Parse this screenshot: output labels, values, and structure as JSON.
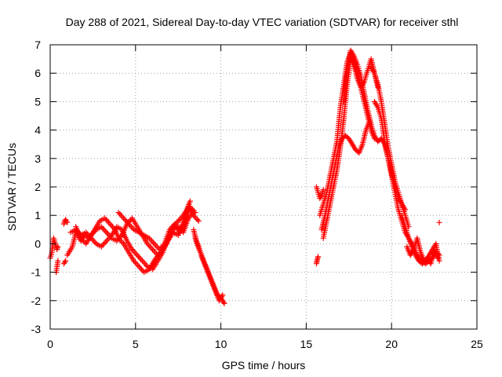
{
  "chart_data": {
    "type": "scatter",
    "title": "Day 288 of 2021, Sidereal Day-to-day VTEC variation (SDTVAR) for receiver sthl",
    "xlabel": "GPS time / hours",
    "ylabel": "SDTVAR / TECUs",
    "xlim": [
      0,
      25
    ],
    "ylim": [
      -3,
      7
    ],
    "xticks": [
      "0",
      "5",
      "10",
      "15",
      "20",
      "25"
    ],
    "yticks": [
      "-3",
      "-2",
      "-1",
      "0",
      "1",
      "2",
      "3",
      "4",
      "5",
      "6",
      "7"
    ],
    "grid": true,
    "marker": "+",
    "series": [
      {
        "name": "SDTVAR",
        "color": "#ff0000",
        "tracks": [
          {
            "x": [
              0.0,
              0.1,
              0.2,
              0.3,
              0.4,
              0.45
            ],
            "y": [
              -0.5,
              -0.3,
              0.2,
              0.0,
              -0.2,
              -0.1
            ]
          },
          {
            "x": [
              0.35,
              0.4,
              0.45
            ],
            "y": [
              -1.0,
              -0.8,
              -0.6
            ]
          },
          {
            "x": [
              0.8,
              0.85,
              0.9,
              0.95,
              1.0
            ],
            "y": [
              0.7,
              0.8,
              0.85,
              0.8,
              0.75
            ]
          },
          {
            "x": [
              0.8,
              0.9
            ],
            "y": [
              -0.7,
              -0.6
            ]
          },
          {
            "x": [
              1.0,
              1.3,
              1.5,
              1.8,
              2.0,
              2.3,
              2.6,
              2.9,
              3.2,
              3.5,
              3.8,
              4.0,
              4.3,
              4.6,
              4.9,
              5.2,
              5.5,
              5.8,
              6.0,
              6.2,
              6.5,
              6.8,
              7.0,
              7.2,
              7.5,
              7.8,
              8.0,
              8.2
            ],
            "y": [
              -0.4,
              -0.1,
              0.4,
              0.1,
              0.3,
              0.2,
              0.5,
              0.8,
              0.9,
              0.7,
              0.5,
              0.2,
              0.0,
              -0.3,
              -0.6,
              -0.8,
              -1.0,
              -0.9,
              -0.7,
              -0.5,
              -0.3,
              0.0,
              0.3,
              0.6,
              0.8,
              1.0,
              1.2,
              1.5
            ]
          },
          {
            "x": [
              1.2,
              1.5,
              1.8,
              2.1,
              2.4,
              2.7,
              3.0,
              3.3,
              3.6,
              3.9,
              4.2,
              4.5,
              4.8,
              5.1,
              5.4,
              5.7,
              6.0,
              6.3,
              6.6,
              6.9,
              7.2,
              7.5,
              7.8,
              8.1,
              8.4
            ],
            "y": [
              0.4,
              0.5,
              0.3,
              0.4,
              0.2,
              0.0,
              -0.1,
              0.1,
              0.3,
              0.6,
              0.5,
              0.1,
              -0.2,
              -0.4,
              -0.6,
              -0.8,
              -0.9,
              -0.6,
              -0.3,
              0.2,
              0.5,
              0.6,
              0.4,
              0.9,
              1.1
            ]
          },
          {
            "x": [
              1.5,
              1.8,
              2.1,
              2.4,
              2.7,
              3.0,
              3.3,
              3.6,
              3.9,
              4.2,
              4.5,
              4.8,
              5.1,
              5.4,
              5.7,
              6.0,
              6.3,
              6.6,
              6.9,
              7.2,
              7.5,
              7.8,
              8.1,
              8.4,
              8.7
            ],
            "y": [
              0.6,
              0.2,
              0.0,
              0.3,
              0.5,
              0.6,
              0.4,
              0.2,
              0.1,
              0.3,
              0.7,
              0.9,
              0.6,
              0.3,
              0.0,
              -0.2,
              -0.4,
              -0.2,
              0.1,
              0.4,
              0.3,
              0.8,
              1.3,
              1.0,
              0.8
            ]
          },
          {
            "x": [
              4.0,
              4.3,
              4.6,
              4.9,
              5.2,
              5.5,
              5.8,
              6.1,
              6.4,
              6.7,
              7.0,
              7.3,
              7.6,
              7.9,
              8.2,
              8.5
            ],
            "y": [
              1.1,
              0.9,
              0.7,
              0.5,
              0.4,
              0.3,
              0.2,
              0.0,
              -0.2,
              0.0,
              0.5,
              0.7,
              0.4,
              0.8,
              1.3,
              1.1
            ]
          },
          {
            "x": [
              8.4,
              8.6,
              8.8,
              9.0,
              9.2,
              9.4,
              9.6,
              9.8,
              10.0,
              10.2
            ],
            "y": [
              0.5,
              0.0,
              -0.3,
              -0.6,
              -0.9,
              -1.2,
              -1.5,
              -1.8,
              -1.9,
              -2.1
            ]
          },
          {
            "x": [
              8.5,
              8.7,
              8.9,
              9.1,
              9.3,
              9.5,
              9.7,
              9.9,
              10.1
            ],
            "y": [
              0.2,
              -0.1,
              -0.5,
              -0.8,
              -1.1,
              -1.4,
              -1.7,
              -2.0,
              -1.8
            ]
          },
          {
            "x": [
              15.6,
              15.65,
              15.7
            ],
            "y": [
              -0.7,
              -0.55,
              -0.45
            ]
          },
          {
            "x": [
              15.6,
              15.7,
              15.8,
              15.9,
              16.0
            ],
            "y": [
              2.0,
              1.8,
              1.6,
              1.7,
              1.9
            ]
          },
          {
            "x": [
              15.8,
              16.0,
              16.2,
              16.4,
              16.6,
              16.8,
              17.0,
              17.2,
              17.4,
              17.6,
              17.8,
              18.0,
              18.2,
              18.4,
              18.6,
              18.8,
              19.0
            ],
            "y": [
              1.0,
              1.4,
              1.8,
              2.4,
              3.0,
              3.6,
              4.8,
              5.6,
              6.4,
              6.7,
              6.4,
              6.0,
              5.5,
              5.0,
              4.5,
              4.0,
              3.7
            ]
          },
          {
            "x": [
              15.9,
              16.1,
              16.3,
              16.5,
              16.7,
              16.9,
              17.1,
              17.3,
              17.5,
              17.7,
              17.9,
              18.1,
              18.3,
              18.5,
              18.7
            ],
            "y": [
              0.5,
              1.0,
              1.6,
              2.2,
              2.8,
              3.4,
              3.7,
              3.8,
              3.7,
              3.5,
              3.3,
              3.2,
              3.5,
              4.0,
              4.3
            ]
          },
          {
            "x": [
              16.0,
              16.2,
              16.4,
              16.6,
              16.8,
              17.0,
              17.2,
              17.4,
              17.6,
              17.8,
              18.0,
              18.2,
              18.4,
              18.6,
              18.8,
              19.0,
              19.2
            ],
            "y": [
              0.2,
              0.8,
              1.4,
              2.0,
              2.6,
              3.4,
              4.4,
              5.6,
              6.5,
              6.3,
              5.8,
              5.5,
              5.7,
              6.1,
              6.5,
              6.0,
              5.5
            ]
          },
          {
            "x": [
              17.2,
              17.4,
              17.6,
              17.8,
              18.0,
              18.2,
              18.4,
              18.6,
              18.8,
              19.0,
              19.2,
              19.4,
              19.6,
              19.8,
              20.0,
              20.2,
              20.4,
              20.6,
              20.8,
              21.0
            ],
            "y": [
              5.0,
              6.2,
              6.8,
              6.6,
              6.3,
              5.9,
              5.3,
              4.7,
              4.2,
              3.8,
              3.6,
              3.7,
              3.5,
              3.0,
              2.5,
              2.0,
              1.6,
              1.4,
              1.0,
              0.6
            ]
          },
          {
            "x": [
              18.8,
              19.0,
              19.2,
              19.4,
              19.6,
              19.8,
              20.0,
              20.2,
              20.4,
              20.6,
              20.8
            ],
            "y": [
              6.2,
              6.0,
              5.6,
              5.0,
              4.2,
              3.4,
              2.8,
              2.2,
              1.8,
              1.4,
              1.2
            ]
          },
          {
            "x": [
              19.0,
              19.2,
              19.4,
              19.6,
              19.8,
              20.0,
              20.2,
              20.4,
              20.6,
              20.8,
              21.0,
              21.2,
              21.4,
              21.6,
              21.8,
              22.0,
              22.2,
              22.4,
              22.6,
              22.8
            ],
            "y": [
              5.0,
              4.8,
              4.4,
              3.6,
              3.0,
              2.4,
              1.8,
              1.2,
              0.8,
              0.4,
              0.2,
              0.0,
              -0.3,
              -0.5,
              -0.6,
              -0.7,
              -0.6,
              -0.5,
              -0.3,
              -0.4
            ]
          },
          {
            "x": [
              20.6,
              20.8,
              21.0,
              21.2,
              21.4,
              21.6,
              21.8,
              22.0,
              22.2,
              22.4,
              22.6,
              22.8
            ],
            "y": [
              1.0,
              0.6,
              0.2,
              -0.1,
              -0.4,
              -0.6,
              -0.7,
              -0.6,
              -0.4,
              -0.2,
              0.0,
              -0.6
            ]
          },
          {
            "x": [
              20.9,
              21.1,
              21.3,
              21.5,
              21.7,
              21.9,
              22.1,
              22.3,
              22.5,
              22.7
            ],
            "y": [
              -0.1,
              -0.4,
              -0.2,
              0.2,
              -0.3,
              -0.6,
              -0.5,
              -0.7,
              -0.2,
              -0.5
            ]
          },
          {
            "x": [
              22.8
            ],
            "y": [
              0.75
            ]
          }
        ]
      }
    ]
  }
}
